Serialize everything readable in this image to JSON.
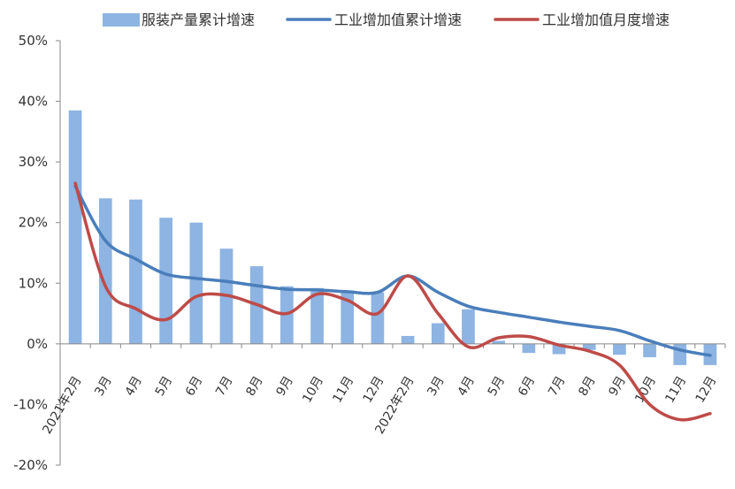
{
  "chart_data": {
    "type": "bar+line",
    "categories": [
      "2021年2月",
      "3月",
      "4月",
      "5月",
      "6月",
      "7月",
      "8月",
      "9月",
      "10月",
      "11月",
      "12月",
      "2022年2月",
      "3月",
      "4月",
      "5月",
      "6月",
      "7月",
      "8月",
      "9月",
      "10月",
      "11月",
      "12月"
    ],
    "series": [
      {
        "name": "服装产量累计增速",
        "type": "bar",
        "color": "#8DB4E2",
        "values": [
          38.5,
          24.0,
          23.8,
          20.8,
          20.0,
          15.7,
          12.8,
          9.5,
          9.2,
          8.8,
          8.5,
          1.3,
          3.4,
          5.7,
          0.5,
          -1.5,
          -1.7,
          -1.0,
          -1.8,
          -2.2,
          -3.5,
          -3.5
        ]
      },
      {
        "name": "工业增加值累计增速",
        "type": "line",
        "color": "#4A7EBB",
        "values": [
          26.0,
          17.0,
          14.0,
          11.5,
          10.8,
          10.3,
          9.6,
          9.0,
          8.9,
          8.6,
          8.5,
          11.2,
          8.5,
          6.2,
          5.2,
          4.4,
          3.6,
          2.9,
          2.2,
          0.5,
          -1.0,
          -1.9
        ]
      },
      {
        "name": "工业增加值月度增速",
        "type": "line",
        "color": "#BE4B48",
        "values": [
          26.5,
          9.5,
          5.8,
          4.0,
          7.8,
          8.0,
          6.5,
          5.0,
          8.2,
          7.2,
          5.0,
          11.2,
          5.0,
          -0.5,
          1.0,
          1.2,
          -0.2,
          -1.2,
          -3.5,
          -10.0,
          -12.5,
          -11.5
        ]
      }
    ],
    "yticks": [
      "50%",
      "40%",
      "30%",
      "20%",
      "10%",
      "0%",
      "-10%",
      "-20%"
    ],
    "ylim": [
      -20,
      50
    ],
    "xlabel": "",
    "ylabel": "",
    "legend": "top",
    "grid": false
  }
}
